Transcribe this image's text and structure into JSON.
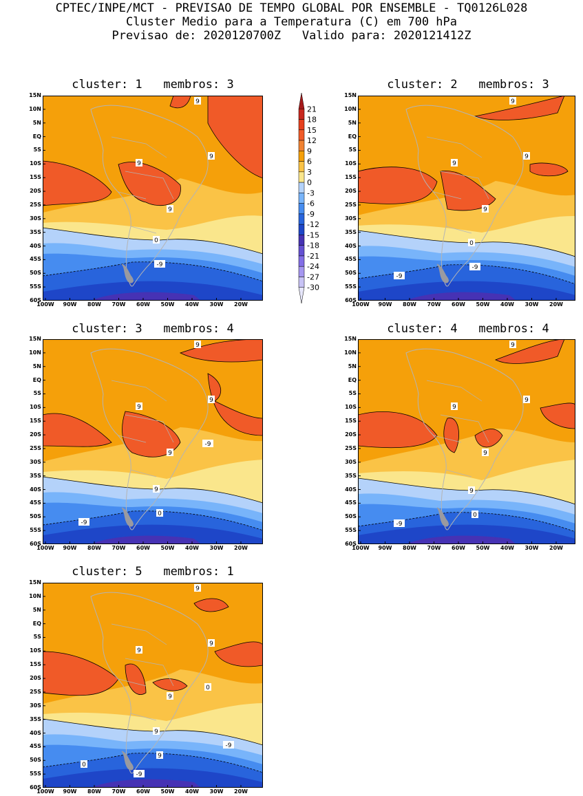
{
  "header": {
    "line1": "CPTEC/INPE/MCT - PREVISAO DE TEMPO GLOBAL POR ENSEMBLE - TQ0126L028",
    "line2": "Cluster Medio para a Temperatura (C) em 700 hPa",
    "line3": "Previsao de: 2020120700Z   Valido para: 2020121412Z"
  },
  "axes": {
    "lat_labels": [
      "15N",
      "10N",
      "5N",
      "EQ",
      "5S",
      "10S",
      "15S",
      "20S",
      "25S",
      "30S",
      "35S",
      "40S",
      "45S",
      "50S",
      "55S",
      "60S"
    ],
    "lon_labels": [
      "100W",
      "90W",
      "80W",
      "70W",
      "60W",
      "50W",
      "40W",
      "30W",
      "20W"
    ]
  },
  "colorbar": {
    "labels": [
      "21",
      "18",
      "15",
      "12",
      "9",
      "6",
      "3",
      "0",
      "-3",
      "-6",
      "-9",
      "-12",
      "-15",
      "-18",
      "-21",
      "-24",
      "-27",
      "-30"
    ],
    "colors": [
      "#a51a1a",
      "#c8281e",
      "#e6401e",
      "#f05a28",
      "#f08232",
      "#f5a00a",
      "#fac346",
      "#fae68c",
      "#b4d2fa",
      "#78b4fa",
      "#468cf0",
      "#2864dc",
      "#1e46c8",
      "#4632b4",
      "#6450d2",
      "#826ee6",
      "#a596f0",
      "#c8c3f5",
      "#e6e6fa"
    ]
  },
  "panels": [
    {
      "title": "cluster: 1   membros: 3",
      "contour_labels": [
        "9",
        "9",
        "9",
        "9",
        "0",
        "-9"
      ]
    },
    {
      "title": "cluster: 2   membros: 3",
      "contour_labels": [
        "9",
        "9",
        "9",
        "9",
        "0",
        "-9",
        "-9"
      ]
    },
    {
      "title": "cluster: 3   membros: 4",
      "contour_labels": [
        "9",
        "9",
        "9",
        "9",
        "9",
        "0",
        "-9",
        "-9"
      ]
    },
    {
      "title": "cluster: 4   membros: 4",
      "contour_labels": [
        "9",
        "9",
        "9",
        "9",
        "9",
        "0",
        "-9"
      ]
    },
    {
      "title": "cluster: 5   membros: 1",
      "contour_labels": [
        "9",
        "9",
        "9",
        "9",
        "9",
        "9",
        "0",
        "0",
        "-9",
        "-9"
      ]
    }
  ]
}
